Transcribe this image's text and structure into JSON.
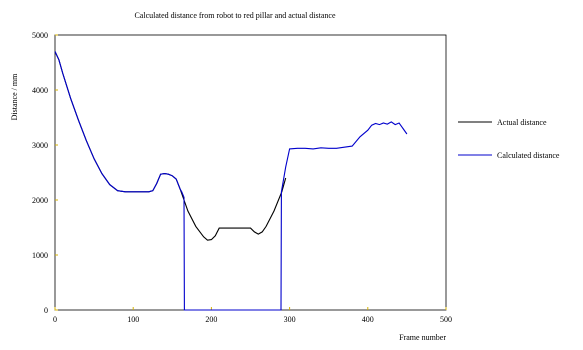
{
  "chart_data": {
    "type": "line",
    "title": "Calculated distance from robot to red pillar and actual distance",
    "xlabel": "Frame number",
    "ylabel": "Distance / mm",
    "xlim": [
      0,
      500
    ],
    "ylim": [
      0,
      5000
    ],
    "x_ticks": [
      0,
      100,
      200,
      300,
      400,
      500
    ],
    "y_ticks": [
      0,
      1000,
      2000,
      3000,
      4000,
      5000
    ],
    "tick_color": "#d4b106",
    "grid": false,
    "legend_position": "right",
    "series": [
      {
        "name": "Actual distance",
        "color": "#000000",
        "x": [
          0,
          5,
          10,
          20,
          30,
          40,
          50,
          60,
          70,
          80,
          90,
          100,
          110,
          120,
          125,
          130,
          135,
          140,
          145,
          150,
          155,
          160,
          165,
          170,
          180,
          190,
          195,
          200,
          205,
          210,
          220,
          230,
          240,
          250,
          255,
          260,
          265,
          270,
          280,
          290,
          295
        ],
        "y": [
          4700,
          4550,
          4300,
          3850,
          3450,
          3080,
          2750,
          2480,
          2280,
          2170,
          2150,
          2150,
          2150,
          2150,
          2170,
          2300,
          2470,
          2480,
          2470,
          2440,
          2380,
          2200,
          2000,
          1800,
          1520,
          1330,
          1270,
          1280,
          1350,
          1490,
          1490,
          1490,
          1490,
          1490,
          1420,
          1380,
          1420,
          1520,
          1800,
          2150,
          2400
        ]
      },
      {
        "name": "Calculated distance",
        "color": "#0000cc",
        "x": [
          0,
          5,
          10,
          20,
          30,
          40,
          50,
          60,
          70,
          80,
          90,
          100,
          110,
          120,
          125,
          130,
          135,
          140,
          145,
          150,
          155,
          160,
          162,
          165,
          165.5,
          200,
          250,
          289,
          289.5,
          295,
          300,
          310,
          320,
          330,
          340,
          350,
          360,
          370,
          380,
          390,
          400,
          405,
          410,
          415,
          420,
          425,
          430,
          435,
          440,
          445,
          450
        ],
        "y": [
          4700,
          4550,
          4300,
          3850,
          3450,
          3080,
          2750,
          2480,
          2280,
          2170,
          2150,
          2150,
          2150,
          2150,
          2170,
          2300,
          2470,
          2480,
          2470,
          2440,
          2380,
          2200,
          2150,
          2050,
          0,
          0,
          0,
          0,
          2150,
          2600,
          2930,
          2940,
          2940,
          2930,
          2950,
          2940,
          2940,
          2960,
          2980,
          3150,
          3270,
          3360,
          3390,
          3370,
          3400,
          3380,
          3420,
          3370,
          3400,
          3300,
          3200
        ]
      }
    ]
  }
}
